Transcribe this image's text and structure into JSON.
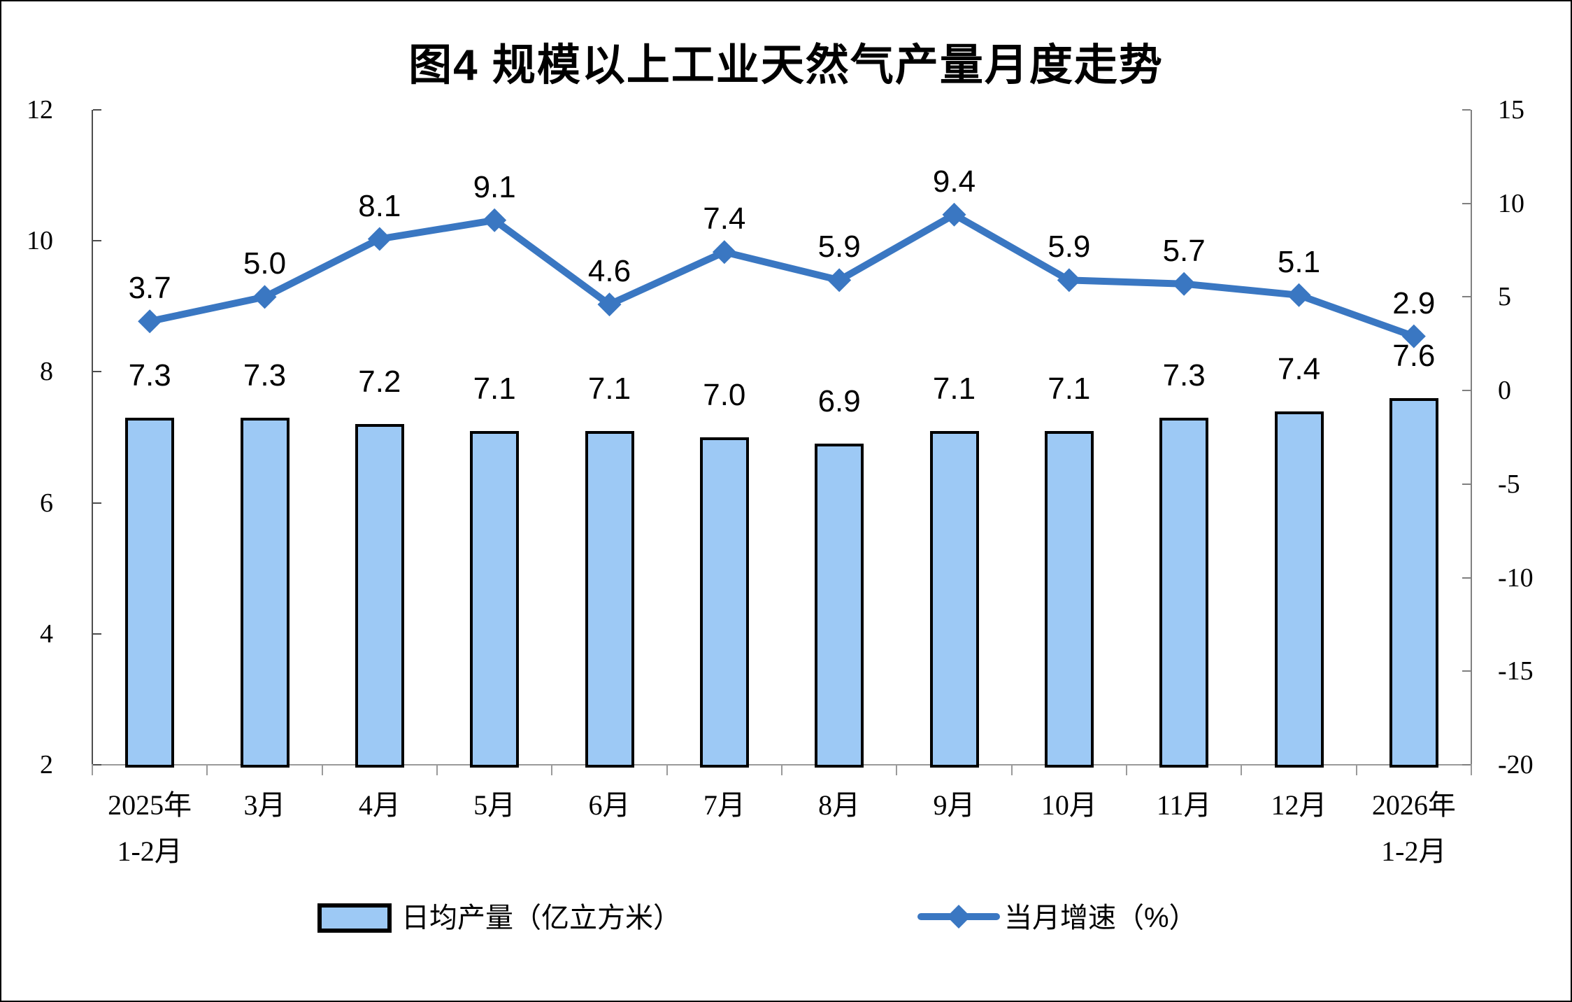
{
  "title": "图4 规模以上工业天然气产量月度走势",
  "chart_data": {
    "type": "bar+line",
    "title": "图4 规模以上工业天然气产量月度走势",
    "categories": [
      [
        "2025年",
        "1-2月"
      ],
      [
        "3月"
      ],
      [
        "4月"
      ],
      [
        "5月"
      ],
      [
        "6月"
      ],
      [
        "7月"
      ],
      [
        "8月"
      ],
      [
        "9月"
      ],
      [
        "10月"
      ],
      [
        "11月"
      ],
      [
        "12月"
      ],
      [
        "2026年",
        "1-2月"
      ]
    ],
    "series": [
      {
        "name": "日均产量（亿立方米）",
        "type": "bar",
        "axis": "left",
        "values": [
          7.3,
          7.3,
          7.2,
          7.1,
          7.1,
          7.0,
          6.9,
          7.1,
          7.1,
          7.3,
          7.4,
          7.6
        ],
        "color": "#9DC9F5",
        "border_color": "#000000"
      },
      {
        "name": "当月增速（%）",
        "type": "line",
        "axis": "right",
        "values": [
          3.7,
          5.0,
          8.1,
          9.1,
          4.6,
          7.4,
          5.9,
          9.4,
          5.9,
          5.7,
          5.1,
          2.9
        ],
        "color": "#3A77C2",
        "marker": "diamond"
      }
    ],
    "left_axis": {
      "min": 2,
      "max": 12,
      "tick_values": [
        12,
        10,
        8,
        6,
        4,
        2
      ]
    },
    "right_axis": {
      "min": -20,
      "max": 15,
      "tick_values": [
        15,
        10,
        5,
        0,
        -5,
        -10,
        -15,
        -20
      ]
    },
    "grid": false,
    "data_labels": true,
    "legend_position": "bottom"
  },
  "colors": {
    "background": "#FFFFFF",
    "frame_border": "#000000",
    "axis_left": "#4D4D4D",
    "axis_right": "#808080",
    "baseline": "#9A9A9A",
    "text": "#000000"
  }
}
